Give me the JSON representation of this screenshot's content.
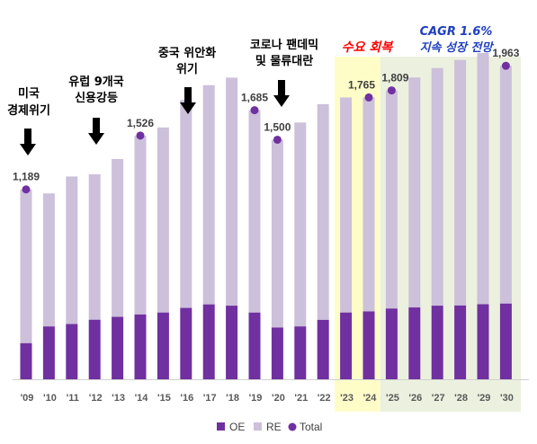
{
  "chart_data": {
    "type": "bar",
    "stacked": true,
    "title": "",
    "xlabel": "",
    "ylabel": "",
    "categories": [
      "'09",
      "'10",
      "'11",
      "'12",
      "'13",
      "'14",
      "'15",
      "'16",
      "'17",
      "'18",
      "'19",
      "'20",
      "'21",
      "'22",
      "'23",
      "'24",
      "'25",
      "'26",
      "'27",
      "'28",
      "'29",
      "'30"
    ],
    "series": [
      {
        "name": "OE",
        "color": "#7030a0",
        "values": [
          226,
          331,
          346,
          373,
          391,
          406,
          418,
          447,
          469,
          461,
          418,
          324,
          331,
          372,
          418,
          425,
          443,
          450,
          461,
          462,
          470,
          474
        ]
      },
      {
        "name": "RE",
        "color": "#ccc0da",
        "values": [
          963,
          833,
          924,
          911,
          988,
          1120,
          1159,
          1302,
          1373,
          1428,
          1267,
          1176,
          1277,
          1351,
          1347,
          1340,
          1366,
          1440,
          1488,
          1538,
          1573,
          1489
        ]
      },
      {
        "name": "Total",
        "color": "#7030a0",
        "type": "scatter",
        "values": [
          1189,
          null,
          null,
          null,
          null,
          1526,
          null,
          null,
          null,
          null,
          1685,
          1500,
          null,
          null,
          null,
          1765,
          1809,
          null,
          null,
          null,
          null,
          1963
        ]
      }
    ],
    "total_labels": [
      "1,189",
      "1,526",
      "1,685",
      "1,500",
      "1,765",
      "1,809",
      "1,963"
    ],
    "ylim": [
      0,
      2150
    ],
    "grid": false,
    "legend": "bottom",
    "legend_labels": [
      "OE",
      "RE",
      "Total"
    ],
    "highlight_regions": [
      {
        "from": "'23",
        "to": "'24",
        "color": "#fefdc8"
      },
      {
        "from": "'25",
        "to": "'30",
        "color": "#ebf1de"
      }
    ],
    "annotations": {
      "crisis_2009": [
        "미국",
        "경제위기"
      ],
      "eu_2012": [
        "유럽 9개국",
        "신용강등"
      ],
      "china_2016": [
        "중국 위안화",
        "위기"
      ],
      "covid_2020": [
        "코로나 팬데믹",
        "및 물류대란"
      ],
      "recovery": "수요 회복",
      "cagr_line1": "CAGR 1.6%",
      "cagr_line2": "지속 성장 전망"
    }
  }
}
